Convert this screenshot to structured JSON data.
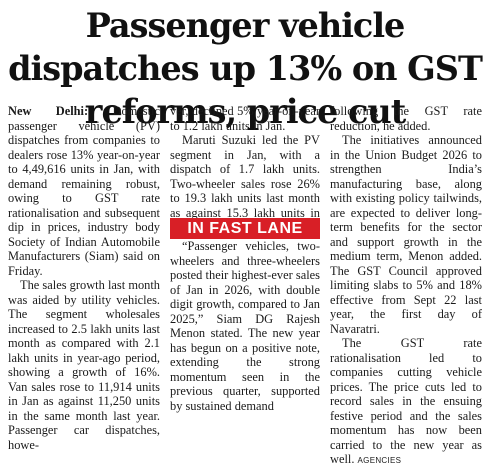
{
  "headline": "Passenger vehicle dispatches up 13% on GST reforms, price cut",
  "dateline": "New Delhi:",
  "column1": {
    "p1": "Domestic passenger vehicle (PV) dispatches from companies to dealers rose 13% year-on-year to 4,49,616 units in Jan, with demand remaining robust, owing to GST rate rationalisation and subsequent dip in prices, industry body Society of Indian Automobile Manufacturers (Siam) said on Friday.",
    "p2": "The sales growth last month was aided by utility vehicles. The segment wholesales increased to 2.5 lakh units last month as compared with 2.1 lakh units in year-ago period, showing a growth of 16%. Van sales rose to 11,914 units in Jan as against 11,250 units in the same month last year. Passenger car dispatches, howe-"
  },
  "column2": {
    "p1": "ver, declined 5% year-on-year to 1.2 lakh units in Jan.",
    "p2": "Maruti Suzuki led the PV segment in Jan, with a dispatch of 1.7 lakh units. Two-wheeler sales rose 26% to 19.3 lakh units last month as against 15.3 lakh units in Jan last year, the Siam said.",
    "box_label": "IN FAST LANE",
    "p3": "“Passenger vehicles, two-wheelers and three-wheelers posted their highest-ever sales of Jan in 2026, with double digit growth, compared to Jan 2025,” Siam DG Rajesh Menon stated. The new year has begun on a positive note, extending the strong momentum seen in the previous quarter, supported by sustained demand"
  },
  "column3": {
    "p1": "following the GST rate reduction, he added.",
    "p2": "The initiatives announced in the Union Budget 2026 to strengthen India’s manufacturing base, along with existing policy tailwinds, are expected to deliver long-term benefits for the sector and support growth in the medium term, Menon added. The GST Council approved limiting slabs to 5% and 18% effective from Sept 22 last year, the first day of Navaratri.",
    "p3": "The GST rate rationalisation led to companies cutting vehicle prices. The price cuts led to record sales in the ensuing festive period and the sales momentum has now been carried to the new year as well.",
    "credit": "AGENCIES"
  },
  "colors": {
    "box_background": "#d81f26",
    "box_text": "#ffffff",
    "text": "#1a1a1a"
  }
}
